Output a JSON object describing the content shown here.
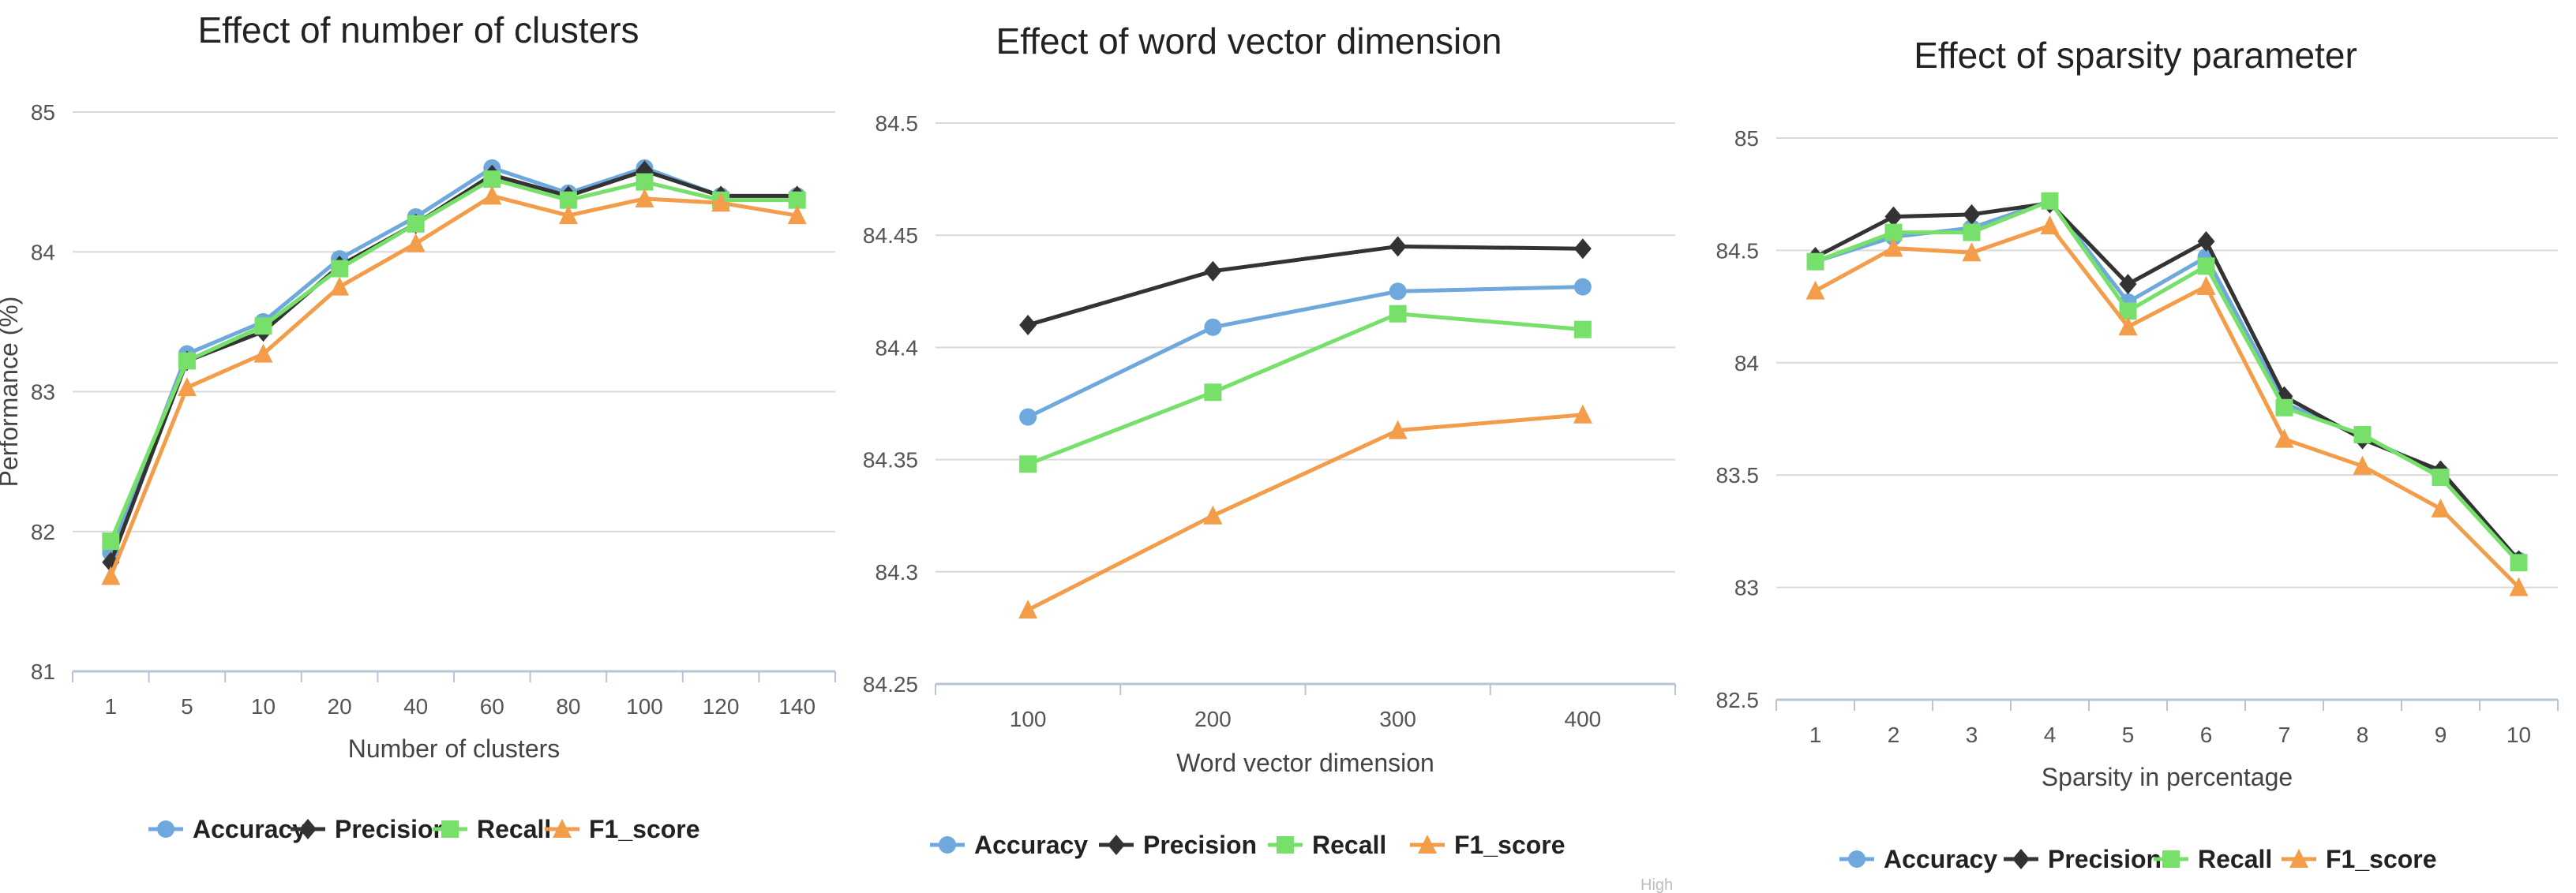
{
  "chart_data": [
    {
      "type": "line",
      "title": "Effect of number of clusters",
      "xlabel": "Number of clusters",
      "ylabel": "Performance (%)",
      "categories": [
        "1",
        "5",
        "10",
        "20",
        "40",
        "60",
        "80",
        "100",
        "120",
        "140"
      ],
      "yticks": [
        "81",
        "82",
        "83",
        "84",
        "85"
      ],
      "ylim": [
        81,
        85
      ],
      "grid": true,
      "legend_position": "bottom",
      "series": [
        {
          "name": "Accuracy",
          "color": "#6fa8dc",
          "marker": "circle",
          "values": [
            81.85,
            83.27,
            83.5,
            83.95,
            84.25,
            84.6,
            84.42,
            84.6,
            84.4,
            84.4
          ]
        },
        {
          "name": "Precision",
          "color": "#333333",
          "marker": "diamond",
          "values": [
            81.78,
            83.22,
            83.43,
            83.9,
            84.2,
            84.55,
            84.4,
            84.58,
            84.4,
            84.4
          ]
        },
        {
          "name": "Recall",
          "color": "#77e06a",
          "marker": "square",
          "values": [
            81.93,
            83.22,
            83.47,
            83.88,
            84.2,
            84.52,
            84.37,
            84.5,
            84.37,
            84.37
          ]
        },
        {
          "name": "F1_score",
          "color": "#f39c4a",
          "marker": "triangle",
          "values": [
            81.68,
            83.03,
            83.27,
            83.75,
            84.06,
            84.4,
            84.26,
            84.38,
            84.35,
            84.26
          ]
        }
      ]
    },
    {
      "type": "line",
      "title": "Effect of word vector dimension",
      "xlabel": "Word vector dimension",
      "ylabel": "",
      "categories": [
        "100",
        "200",
        "300",
        "400"
      ],
      "yticks": [
        "84.25",
        "84.3",
        "84.35",
        "84.4",
        "84.45",
        "84.5"
      ],
      "ylim": [
        84.25,
        84.5
      ],
      "grid": true,
      "legend_position": "bottom",
      "series": [
        {
          "name": "Accuracy",
          "color": "#6fa8dc",
          "marker": "circle",
          "values": [
            84.369,
            84.409,
            84.425,
            84.427
          ]
        },
        {
          "name": "Precision",
          "color": "#333333",
          "marker": "diamond",
          "values": [
            84.41,
            84.434,
            84.445,
            84.444
          ]
        },
        {
          "name": "Recall",
          "color": "#77e06a",
          "marker": "square",
          "values": [
            84.348,
            84.38,
            84.415,
            84.408
          ]
        },
        {
          "name": "F1_score",
          "color": "#f39c4a",
          "marker": "triangle",
          "values": [
            84.283,
            84.325,
            84.363,
            84.37
          ]
        }
      ]
    },
    {
      "type": "line",
      "title": "Effect of sparsity parameter",
      "xlabel": "Sparsity in percentage",
      "ylabel": "",
      "categories": [
        "1",
        "2",
        "3",
        "4",
        "5",
        "6",
        "7",
        "8",
        "9",
        "10"
      ],
      "yticks": [
        "82.5",
        "83",
        "83.5",
        "84",
        "84.5",
        "85"
      ],
      "ylim": [
        82.5,
        85
      ],
      "grid": true,
      "legend_position": "bottom",
      "series": [
        {
          "name": "Accuracy",
          "color": "#6fa8dc",
          "marker": "circle",
          "values": [
            84.45,
            84.56,
            84.6,
            84.72,
            84.27,
            84.47,
            83.82,
            83.67,
            83.51,
            83.12
          ]
        },
        {
          "name": "Precision",
          "color": "#333333",
          "marker": "diamond",
          "values": [
            84.47,
            84.65,
            84.66,
            84.71,
            84.35,
            84.54,
            83.85,
            83.66,
            83.52,
            83.12
          ]
        },
        {
          "name": "Recall",
          "color": "#77e06a",
          "marker": "square",
          "values": [
            84.45,
            84.58,
            84.58,
            84.72,
            84.23,
            84.43,
            83.8,
            83.68,
            83.49,
            83.11
          ]
        },
        {
          "name": "F1_score",
          "color": "#f39c4a",
          "marker": "triangle",
          "values": [
            84.32,
            84.51,
            84.49,
            84.61,
            84.16,
            84.34,
            83.66,
            83.54,
            83.35,
            83.0
          ]
        }
      ]
    }
  ],
  "stray_text": [
    "High"
  ]
}
